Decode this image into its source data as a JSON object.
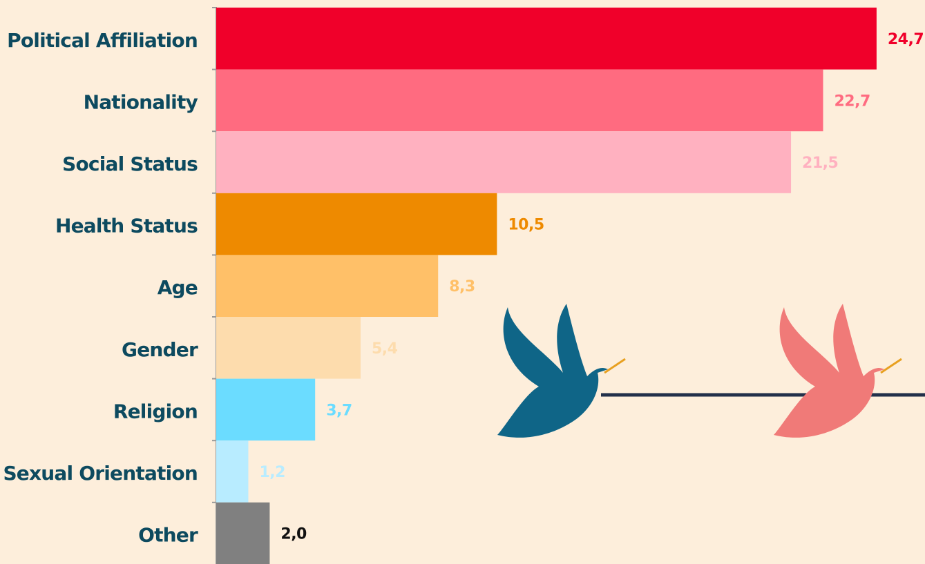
{
  "chart_data": {
    "type": "bar",
    "orientation": "horizontal",
    "categories": [
      "Political Affiliation",
      "Nationality",
      "Social Status",
      "Health Status",
      "Age",
      "Gender",
      "Religion",
      "Sexual Orientation",
      "Other"
    ],
    "values": [
      24.7,
      22.7,
      21.5,
      10.5,
      8.3,
      5.4,
      3.7,
      1.2,
      2.0
    ],
    "value_labels": [
      "24,7",
      "22,7",
      "21,5",
      "10,5",
      "8,3",
      "5,4",
      "3,7",
      "1,2",
      "2,0"
    ],
    "colors": [
      "#f0002a",
      "#ff6b80",
      "#ffb1c0",
      "#ee8a00",
      "#ffc068",
      "#fddcad",
      "#6bdcff",
      "#b8ecff",
      "#808080"
    ],
    "label_colors": [
      "#f0002a",
      "#ff6b80",
      "#ffb1c0",
      "#ee8a00",
      "#ffc068",
      "#fddcad",
      "#6bdcff",
      "#b8ecff",
      "#111111"
    ]
  }
}
